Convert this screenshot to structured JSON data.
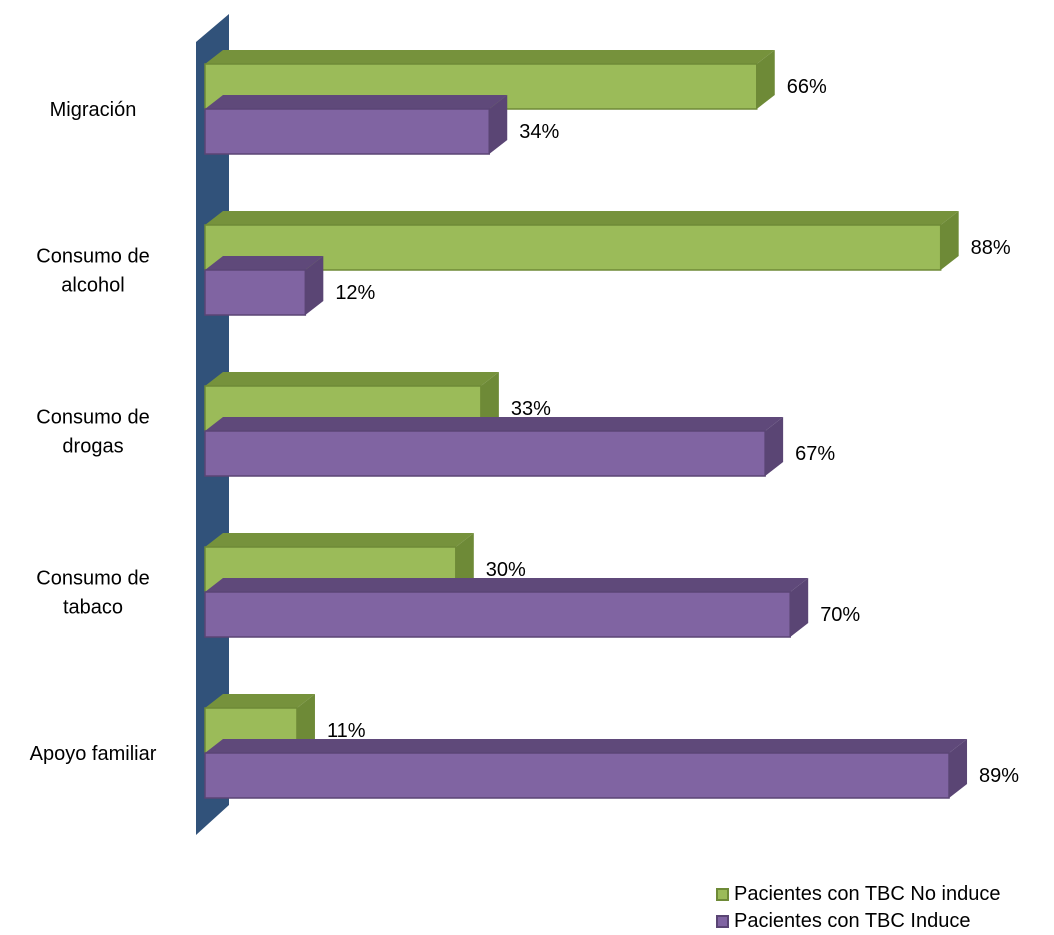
{
  "chart_data": {
    "type": "bar",
    "orientation": "horizontal",
    "three_d": true,
    "categories": [
      "Migración",
      "Consumo de alcohol",
      "Consumo de drogas",
      "Consumo de tabaco",
      "Apoyo familiar"
    ],
    "category_lines": [
      [
        "Migración"
      ],
      [
        "Consumo de",
        "alcohol"
      ],
      [
        "Consumo de",
        "drogas"
      ],
      [
        "Consumo de",
        "tabaco"
      ],
      [
        "Apoyo familiar"
      ]
    ],
    "series": [
      {
        "name": "Pacientes con TBC No induce",
        "values": [
          66,
          88,
          33,
          30,
          11
        ],
        "labels": [
          "66%",
          "88%",
          "33%",
          "30%",
          "11%"
        ],
        "color": "#9BBB59",
        "top_color": "#76923C",
        "side_color": "#6E8A37"
      },
      {
        "name": "Pacientes con TBC Induce",
        "values": [
          34,
          12,
          67,
          70,
          89
        ],
        "labels": [
          "34%",
          "12%",
          "67%",
          "70%",
          "89%"
        ],
        "color": "#8064A2",
        "top_color": "#5F497A",
        "side_color": "#5A4574"
      }
    ],
    "value_unit": "%",
    "xlim": [
      0,
      100
    ],
    "grid": false,
    "legend_position": "bottom-right",
    "axis_wall_color": "#31527A",
    "title": "",
    "xlabel": "",
    "ylabel": ""
  }
}
